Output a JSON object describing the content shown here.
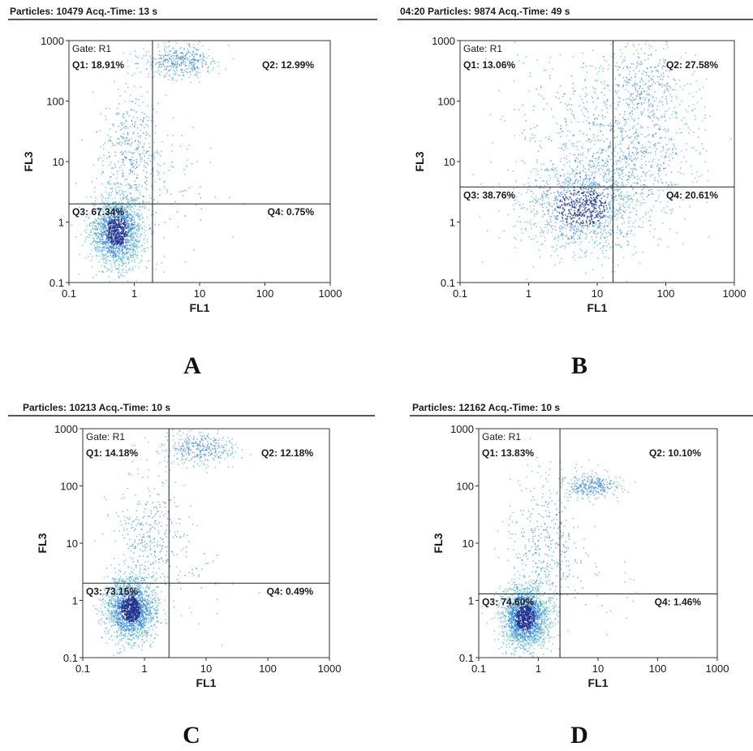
{
  "chart_data": [
    {
      "type": "scatter",
      "panel_letter": "A",
      "header": "Particles: 10479   Acq.-Time: 13 s",
      "xlabel": "FL1",
      "ylabel": "FL3",
      "xscale": "log",
      "yscale": "log",
      "xlim": [
        0.1,
        1000
      ],
      "ylim": [
        0.1,
        1000
      ],
      "xticks": [
        "0.1",
        "1",
        "10",
        "100",
        "1000"
      ],
      "yticks": [
        "0.1",
        "1",
        "10",
        "100",
        "1000"
      ],
      "gate": "Gate: R1",
      "quadrant_gate": {
        "x": 1.9,
        "y": 2.0
      },
      "quadrants": {
        "Q1": "Q1: 18.91%",
        "Q2": "Q2: 12.99%",
        "Q3": "Q3: 67.34%",
        "Q4": "Q4: 0.75%"
      },
      "populations": [
        {
          "cx": 0.55,
          "cy": 0.7,
          "sx": 0.2,
          "sy": 0.3,
          "weight": 0.66
        },
        {
          "cx": 0.9,
          "cy": 15,
          "sx": 0.25,
          "sy": 0.55,
          "weight": 0.16
        },
        {
          "cx": 5,
          "cy": 450,
          "sx": 0.3,
          "sy": 0.15,
          "weight": 0.15
        },
        {
          "cx": 3,
          "cy": 3,
          "sx": 0.5,
          "sy": 0.5,
          "weight": 0.03
        }
      ]
    },
    {
      "type": "scatter",
      "panel_letter": "B",
      "header": "04:20   Particles: 9874   Acq.-Time: 49 s",
      "xlabel": "FL1",
      "ylabel": "FL3",
      "xscale": "log",
      "yscale": "log",
      "xlim": [
        0.1,
        1000
      ],
      "ylim": [
        0.1,
        1000
      ],
      "xticks": [
        "0.1",
        "1",
        "10",
        "100",
        "1000"
      ],
      "yticks": [
        "0.1",
        "1",
        "10",
        "100",
        "1000"
      ],
      "gate": "Gate: R1",
      "quadrant_gate": {
        "x": 17,
        "y": 3.8
      },
      "quadrants": {
        "Q1": "Q1: 13.06%",
        "Q2": "Q2: 27.58%",
        "Q3": "Q3: 38.76%",
        "Q4": "Q4: 20.61%"
      },
      "populations": [
        {
          "cx": 6,
          "cy": 1.8,
          "sx": 0.45,
          "sy": 0.4,
          "weight": 0.5
        },
        {
          "cx": 30,
          "cy": 15,
          "sx": 0.5,
          "sy": 0.6,
          "weight": 0.28
        },
        {
          "cx": 50,
          "cy": 200,
          "sx": 0.35,
          "sy": 0.35,
          "weight": 0.12
        },
        {
          "cx": 5,
          "cy": 40,
          "sx": 0.6,
          "sy": 0.7,
          "weight": 0.1
        }
      ]
    },
    {
      "type": "scatter",
      "panel_letter": "C",
      "header": "Particles: 10213   Acq.-Time: 10 s",
      "xlabel": "FL1",
      "ylabel": "FL3",
      "xscale": "log",
      "yscale": "log",
      "xlim": [
        0.1,
        1000
      ],
      "ylim": [
        0.1,
        1000
      ],
      "xticks": [
        "0.1",
        "1",
        "10",
        "100",
        "1000"
      ],
      "yticks": [
        "0.1",
        "1",
        "10",
        "100",
        "1000"
      ],
      "gate": "Gate: R1",
      "quadrant_gate": {
        "x": 2.5,
        "y": 2.0
      },
      "quadrants": {
        "Q1": "Q1: 14.18%",
        "Q2": "Q2: 12.18%",
        "Q3": "Q3: 73.15%",
        "Q4": "Q4: 0.49%"
      },
      "populations": [
        {
          "cx": 0.6,
          "cy": 0.7,
          "sx": 0.2,
          "sy": 0.28,
          "weight": 0.72
        },
        {
          "cx": 1.2,
          "cy": 12,
          "sx": 0.3,
          "sy": 0.6,
          "weight": 0.13
        },
        {
          "cx": 8,
          "cy": 450,
          "sx": 0.3,
          "sy": 0.15,
          "weight": 0.13
        },
        {
          "cx": 4,
          "cy": 3,
          "sx": 0.5,
          "sy": 0.5,
          "weight": 0.02
        }
      ]
    },
    {
      "type": "scatter",
      "panel_letter": "D",
      "header": "Particles: 12162   Acq.-Time: 10 s",
      "xlabel": "FL1",
      "ylabel": "FL3",
      "xscale": "log",
      "yscale": "log",
      "xlim": [
        0.1,
        1000
      ],
      "ylim": [
        0.1,
        1000
      ],
      "xticks": [
        "0.1",
        "1",
        "10",
        "100",
        "1000"
      ],
      "yticks": [
        "0.1",
        "1",
        "10",
        "100",
        "1000"
      ],
      "gate": "Gate: R1",
      "quadrant_gate": {
        "x": 2.3,
        "y": 1.3
      },
      "quadrants": {
        "Q1": "Q1: 13.83%",
        "Q2": "Q2: 10.10%",
        "Q3": "Q3: 74.60%",
        "Q4": "Q4: 1.46%"
      },
      "populations": [
        {
          "cx": 0.6,
          "cy": 0.5,
          "sx": 0.2,
          "sy": 0.28,
          "weight": 0.73
        },
        {
          "cx": 1.3,
          "cy": 10,
          "sx": 0.3,
          "sy": 0.6,
          "weight": 0.14
        },
        {
          "cx": 8,
          "cy": 100,
          "sx": 0.25,
          "sy": 0.12,
          "weight": 0.11
        },
        {
          "cx": 4,
          "cy": 2,
          "sx": 0.5,
          "sy": 0.5,
          "weight": 0.02
        }
      ]
    }
  ],
  "colors": {
    "dense": "#1c2f8c",
    "medium": "#2a7fd0",
    "sparse": "#3aa8c8",
    "frame": "#333333",
    "header_rule": "#222222"
  }
}
